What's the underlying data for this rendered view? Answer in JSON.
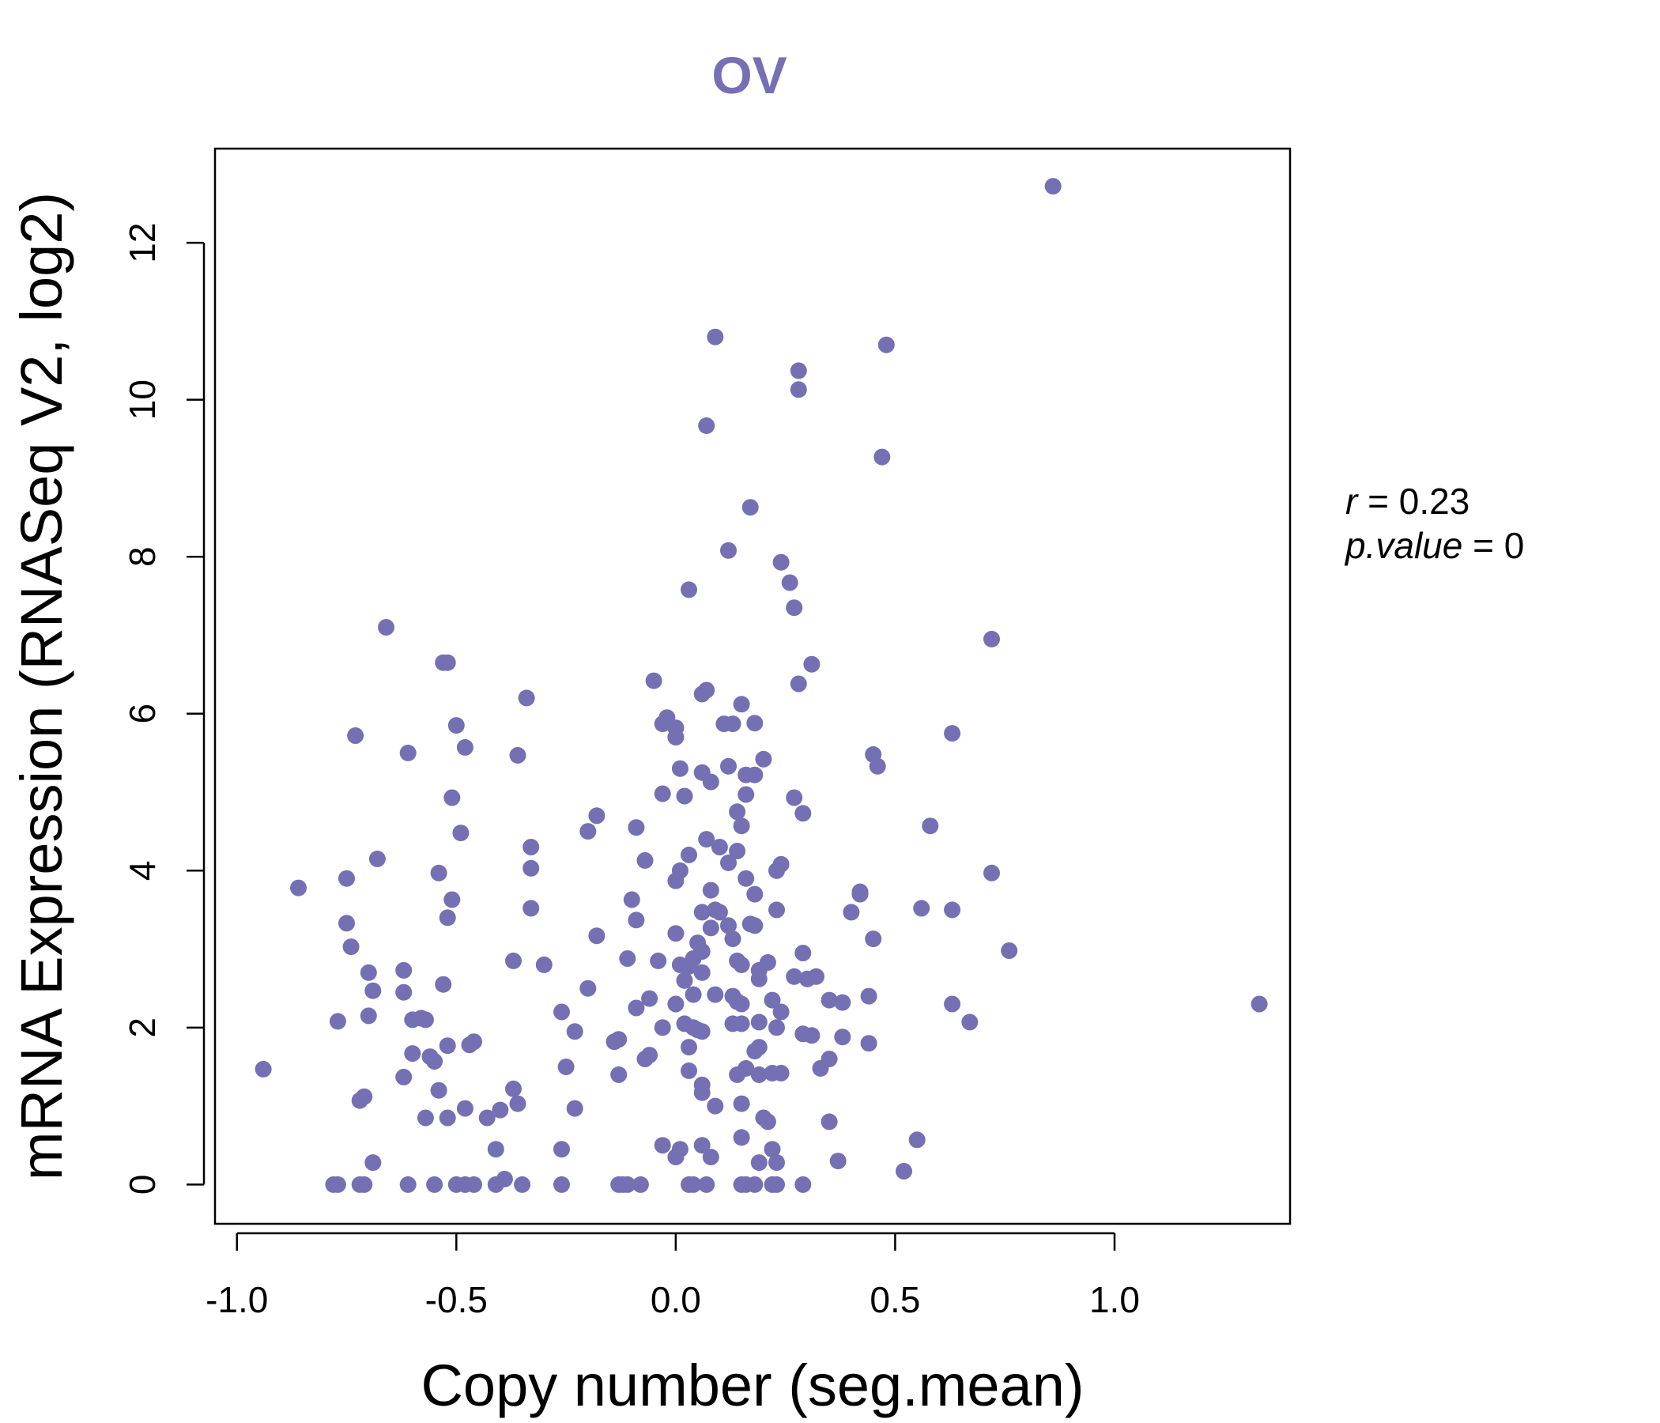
{
  "colors": {
    "accent": "#7570b3",
    "axis": "#000000",
    "background": "#ffffff"
  },
  "chart_data": {
    "type": "scatter",
    "title": "OV",
    "xlabel": "Copy number (seg.mean)",
    "ylabel": "mRNA Expression (RNASeq V2, log2)",
    "xlim": [
      -1.05,
      1.4
    ],
    "ylim": [
      -0.5,
      13.2
    ],
    "x_ticks": [
      -1.0,
      -0.5,
      0.0,
      0.5,
      1.0
    ],
    "x_tick_labels": [
      "-1.0",
      "-0.5",
      "0.0",
      "0.5",
      "1.0"
    ],
    "y_ticks": [
      0,
      2,
      4,
      6,
      8,
      10,
      12
    ],
    "y_tick_labels": [
      "0",
      "2",
      "4",
      "6",
      "8",
      "10",
      "12"
    ],
    "annotations": {
      "r_label": "r",
      "r_value": "0.23",
      "p_label": "p.value",
      "p_value": "0"
    },
    "points": [
      [
        0.86,
        12.72
      ],
      [
        0.09,
        10.8
      ],
      [
        0.48,
        10.7
      ],
      [
        0.28,
        10.37
      ],
      [
        0.28,
        10.13
      ],
      [
        0.07,
        9.67
      ],
      [
        0.47,
        9.27
      ],
      [
        0.17,
        8.63
      ],
      [
        0.12,
        8.08
      ],
      [
        0.24,
        7.93
      ],
      [
        0.26,
        7.67
      ],
      [
        0.03,
        7.58
      ],
      [
        0.27,
        7.35
      ],
      [
        -0.66,
        7.1
      ],
      [
        0.72,
        6.95
      ],
      [
        -0.53,
        6.65
      ],
      [
        -0.52,
        6.65
      ],
      [
        0.31,
        6.63
      ],
      [
        -0.05,
        6.42
      ],
      [
        0.28,
        6.38
      ],
      [
        0.07,
        6.3
      ],
      [
        0.06,
        6.25
      ],
      [
        -0.34,
        6.2
      ],
      [
        0.15,
        6.12
      ],
      [
        -0.02,
        5.95
      ],
      [
        0.18,
        5.88
      ],
      [
        -0.03,
        5.87
      ],
      [
        -0.5,
        5.85
      ],
      [
        0.11,
        5.87
      ],
      [
        0.13,
        5.87
      ],
      [
        0.0,
        5.82
      ],
      [
        0.0,
        5.7
      ],
      [
        -0.73,
        5.72
      ],
      [
        0.63,
        5.75
      ],
      [
        -0.61,
        5.5
      ],
      [
        0.45,
        5.48
      ],
      [
        -0.48,
        5.57
      ],
      [
        -0.36,
        5.47
      ],
      [
        0.2,
        5.42
      ],
      [
        0.46,
        5.33
      ],
      [
        0.12,
        5.33
      ],
      [
        0.01,
        5.3
      ],
      [
        0.06,
        5.25
      ],
      [
        0.16,
        5.22
      ],
      [
        0.18,
        5.22
      ],
      [
        0.08,
        5.13
      ],
      [
        -0.51,
        4.93
      ],
      [
        -0.03,
        4.98
      ],
      [
        0.02,
        4.95
      ],
      [
        0.16,
        4.97
      ],
      [
        0.27,
        4.93
      ],
      [
        0.14,
        4.75
      ],
      [
        0.29,
        4.73
      ],
      [
        -0.18,
        4.7
      ],
      [
        0.58,
        4.57
      ],
      [
        0.15,
        4.57
      ],
      [
        -0.09,
        4.55
      ],
      [
        -0.2,
        4.5
      ],
      [
        -0.49,
        4.48
      ],
      [
        0.07,
        4.4
      ],
      [
        -0.33,
        4.3
      ],
      [
        0.1,
        4.3
      ],
      [
        0.14,
        4.25
      ],
      [
        0.03,
        4.2
      ],
      [
        -0.68,
        4.15
      ],
      [
        -0.07,
        4.13
      ],
      [
        0.12,
        4.1
      ],
      [
        0.24,
        4.08
      ],
      [
        0.23,
        4.0
      ],
      [
        0.01,
        4.0
      ],
      [
        -0.33,
        4.03
      ],
      [
        -0.54,
        3.97
      ],
      [
        0.72,
        3.97
      ],
      [
        0.0,
        3.87
      ],
      [
        -0.75,
        3.9
      ],
      [
        0.16,
        3.9
      ],
      [
        -0.86,
        3.78
      ],
      [
        0.08,
        3.75
      ],
      [
        0.42,
        3.7
      ],
      [
        0.42,
        3.73
      ],
      [
        0.18,
        3.7
      ],
      [
        -0.1,
        3.63
      ],
      [
        -0.51,
        3.63
      ],
      [
        0.56,
        3.52
      ],
      [
        -0.33,
        3.52
      ],
      [
        0.63,
        3.5
      ],
      [
        0.23,
        3.5
      ],
      [
        0.06,
        3.47
      ],
      [
        0.09,
        3.5
      ],
      [
        0.1,
        3.47
      ],
      [
        0.4,
        3.47
      ],
      [
        -0.52,
        3.4
      ],
      [
        -0.09,
        3.37
      ],
      [
        -0.75,
        3.33
      ],
      [
        0.17,
        3.32
      ],
      [
        0.18,
        3.3
      ],
      [
        0.12,
        3.3
      ],
      [
        0.08,
        3.27
      ],
      [
        0.0,
        3.2
      ],
      [
        -0.18,
        3.17
      ],
      [
        0.45,
        3.13
      ],
      [
        0.13,
        3.13
      ],
      [
        0.05,
        3.08
      ],
      [
        -0.74,
        3.03
      ],
      [
        0.76,
        2.98
      ],
      [
        0.06,
        2.97
      ],
      [
        0.29,
        2.95
      ],
      [
        -0.11,
        2.88
      ],
      [
        -0.37,
        2.85
      ],
      [
        0.04,
        2.88
      ],
      [
        -0.04,
        2.85
      ],
      [
        0.14,
        2.85
      ],
      [
        0.21,
        2.83
      ],
      [
        0.01,
        2.8
      ],
      [
        0.15,
        2.8
      ],
      [
        -0.3,
        2.8
      ],
      [
        0.03,
        2.78
      ],
      [
        0.19,
        2.73
      ],
      [
        -0.62,
        2.73
      ],
      [
        -0.7,
        2.7
      ],
      [
        0.06,
        2.7
      ],
      [
        0.27,
        2.65
      ],
      [
        0.3,
        2.62
      ],
      [
        0.32,
        2.65
      ],
      [
        0.02,
        2.6
      ],
      [
        0.19,
        2.62
      ],
      [
        -0.53,
        2.55
      ],
      [
        -0.2,
        2.5
      ],
      [
        -0.69,
        2.47
      ],
      [
        -0.62,
        2.45
      ],
      [
        0.09,
        2.42
      ],
      [
        0.13,
        2.4
      ],
      [
        0.04,
        2.42
      ],
      [
        0.44,
        2.4
      ],
      [
        -0.06,
        2.37
      ],
      [
        0.22,
        2.35
      ],
      [
        0.35,
        2.35
      ],
      [
        0.14,
        2.33
      ],
      [
        0.38,
        2.32
      ],
      [
        0.15,
        2.3
      ],
      [
        0.63,
        2.3
      ],
      [
        1.33,
        2.3
      ],
      [
        0.0,
        2.3
      ],
      [
        -0.09,
        2.25
      ],
      [
        0.24,
        2.2
      ],
      [
        -0.26,
        2.2
      ],
      [
        -0.7,
        2.15
      ],
      [
        -0.6,
        2.1
      ],
      [
        -0.57,
        2.1
      ],
      [
        0.67,
        2.07
      ],
      [
        -0.58,
        2.12
      ],
      [
        -0.77,
        2.08
      ],
      [
        0.15,
        2.05
      ],
      [
        0.13,
        2.05
      ],
      [
        0.19,
        2.07
      ],
      [
        0.02,
        2.05
      ],
      [
        0.04,
        2.0
      ],
      [
        0.05,
        1.97
      ],
      [
        0.23,
        2.0
      ],
      [
        -0.03,
        2.0
      ],
      [
        0.06,
        1.95
      ],
      [
        -0.23,
        1.95
      ],
      [
        0.29,
        1.92
      ],
      [
        0.31,
        1.9
      ],
      [
        0.38,
        1.88
      ],
      [
        -0.13,
        1.85
      ],
      [
        -0.14,
        1.82
      ],
      [
        -0.46,
        1.82
      ],
      [
        -0.52,
        1.77
      ],
      [
        -0.47,
        1.78
      ],
      [
        0.03,
        1.75
      ],
      [
        0.19,
        1.75
      ],
      [
        0.44,
        1.8
      ],
      [
        0.18,
        1.7
      ],
      [
        -0.6,
        1.67
      ],
      [
        -0.56,
        1.63
      ],
      [
        -0.06,
        1.65
      ],
      [
        -0.07,
        1.6
      ],
      [
        -0.55,
        1.57
      ],
      [
        0.35,
        1.6
      ],
      [
        -0.25,
        1.5
      ],
      [
        0.33,
        1.48
      ],
      [
        0.16,
        1.48
      ],
      [
        -0.94,
        1.47
      ],
      [
        0.03,
        1.45
      ],
      [
        0.14,
        1.4
      ],
      [
        -0.13,
        1.4
      ],
      [
        0.19,
        1.4
      ],
      [
        0.22,
        1.42
      ],
      [
        0.24,
        1.42
      ],
      [
        -0.62,
        1.37
      ],
      [
        0.06,
        1.27
      ],
      [
        -0.37,
        1.22
      ],
      [
        -0.54,
        1.2
      ],
      [
        0.06,
        1.17
      ],
      [
        -0.71,
        1.12
      ],
      [
        -0.72,
        1.07
      ],
      [
        -0.36,
        1.03
      ],
      [
        0.15,
        1.03
      ],
      [
        0.09,
        1.0
      ],
      [
        -0.23,
        0.97
      ],
      [
        -0.48,
        0.97
      ],
      [
        -0.4,
        0.95
      ],
      [
        -0.57,
        0.85
      ],
      [
        -0.52,
        0.85
      ],
      [
        -0.43,
        0.85
      ],
      [
        0.2,
        0.85
      ],
      [
        0.21,
        0.8
      ],
      [
        0.35,
        0.8
      ],
      [
        0.15,
        0.6
      ],
      [
        0.55,
        0.57
      ],
      [
        -0.41,
        0.45
      ],
      [
        -0.26,
        0.45
      ],
      [
        -0.03,
        0.5
      ],
      [
        0.06,
        0.5
      ],
      [
        0.01,
        0.45
      ],
      [
        0.0,
        0.35
      ],
      [
        0.08,
        0.35
      ],
      [
        0.22,
        0.45
      ],
      [
        0.37,
        0.3
      ],
      [
        -0.69,
        0.28
      ],
      [
        0.19,
        0.28
      ],
      [
        0.23,
        0.28
      ],
      [
        0.52,
        0.17
      ],
      [
        -0.39,
        0.07
      ],
      [
        -0.78,
        0
      ],
      [
        -0.77,
        0
      ],
      [
        -0.72,
        0
      ],
      [
        -0.71,
        0
      ],
      [
        -0.61,
        0
      ],
      [
        -0.55,
        0
      ],
      [
        -0.5,
        0
      ],
      [
        -0.48,
        0
      ],
      [
        -0.46,
        0
      ],
      [
        -0.41,
        0
      ],
      [
        -0.35,
        0
      ],
      [
        -0.26,
        0
      ],
      [
        -0.13,
        0
      ],
      [
        -0.12,
        0
      ],
      [
        -0.11,
        0
      ],
      [
        -0.08,
        0
      ],
      [
        0.03,
        0
      ],
      [
        0.04,
        0
      ],
      [
        0.07,
        0
      ],
      [
        0.15,
        0
      ],
      [
        0.16,
        0
      ],
      [
        0.18,
        0
      ],
      [
        0.22,
        0
      ],
      [
        0.23,
        0
      ],
      [
        0.29,
        0
      ]
    ]
  }
}
